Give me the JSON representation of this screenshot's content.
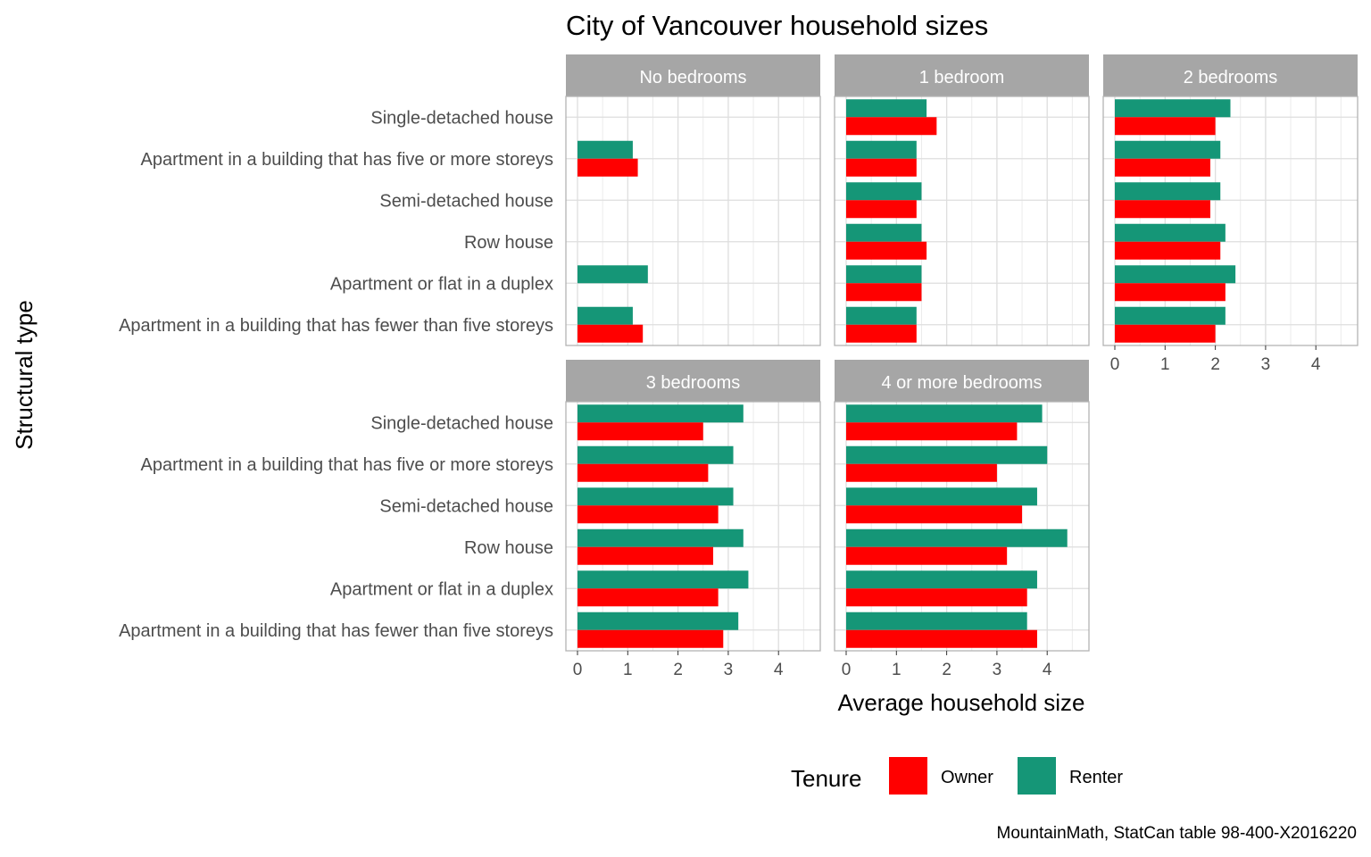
{
  "chart_data": {
    "type": "bar",
    "orientation": "horizontal",
    "title": "City of Vancouver household sizes",
    "xlabel": "Average household size",
    "ylabel": "Structural type",
    "caption": "MountainMath, StatCan table 98-400-X2016220",
    "xlim": [
      0,
      4.6
    ],
    "xticks": [
      0,
      1,
      2,
      3,
      4
    ],
    "grid": true,
    "legend": {
      "title": "Tenure",
      "position": "bottom",
      "items": [
        {
          "name": "Owner",
          "color": "#ff0000"
        },
        {
          "name": "Renter",
          "color": "#159677"
        }
      ]
    },
    "categories": [
      "Single-detached house",
      "Apartment in a building that has five or more storeys",
      "Semi-detached house",
      "Row house",
      "Apartment or flat in a duplex",
      "Apartment in a building that has fewer than five storeys"
    ],
    "panels": [
      {
        "name": "No bedrooms",
        "series": [
          {
            "name": "Renter",
            "values": [
              null,
              1.1,
              null,
              null,
              1.4,
              1.1
            ]
          },
          {
            "name": "Owner",
            "values": [
              null,
              1.2,
              null,
              null,
              null,
              1.3
            ]
          }
        ]
      },
      {
        "name": "1 bedroom",
        "series": [
          {
            "name": "Renter",
            "values": [
              1.6,
              1.4,
              1.5,
              1.5,
              1.5,
              1.4
            ]
          },
          {
            "name": "Owner",
            "values": [
              1.8,
              1.4,
              1.4,
              1.6,
              1.5,
              1.4
            ]
          }
        ]
      },
      {
        "name": "2 bedrooms",
        "series": [
          {
            "name": "Renter",
            "values": [
              2.3,
              2.1,
              2.1,
              2.2,
              2.4,
              2.2
            ]
          },
          {
            "name": "Owner",
            "values": [
              2.0,
              1.9,
              1.9,
              2.1,
              2.2,
              2.0
            ]
          }
        ]
      },
      {
        "name": "3 bedrooms",
        "series": [
          {
            "name": "Renter",
            "values": [
              3.3,
              3.1,
              3.1,
              3.3,
              3.4,
              3.2
            ]
          },
          {
            "name": "Owner",
            "values": [
              2.5,
              2.6,
              2.8,
              2.7,
              2.8,
              2.9
            ]
          }
        ]
      },
      {
        "name": "4 or more bedrooms",
        "series": [
          {
            "name": "Renter",
            "values": [
              3.9,
              4.0,
              3.8,
              4.4,
              3.8,
              3.6
            ]
          },
          {
            "name": "Owner",
            "values": [
              3.4,
              3.0,
              3.5,
              3.2,
              3.6,
              3.8
            ]
          }
        ]
      }
    ]
  }
}
